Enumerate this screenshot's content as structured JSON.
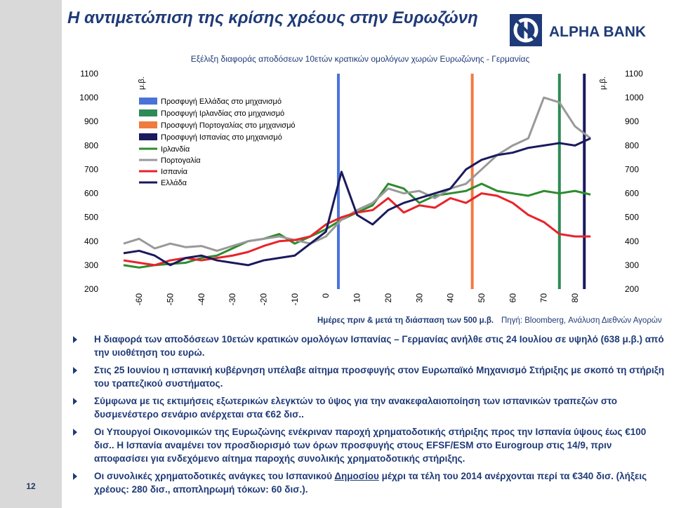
{
  "page_number": "12",
  "title": "Η αντιμετώπιση της κρίσης χρέους στην Ευρωζώνη",
  "logo": {
    "text": "ALPHA BANK",
    "color": "#1f3a78"
  },
  "chart_data": {
    "type": "line",
    "title": "Εξέλιξη διαφοράς αποδόσεων 10ετών κρατικών ομολόγων χωρών Ευρωζώνης - Γερμανίας",
    "ylabel_left": "μ.β.",
    "ylabel_right": "μ.β.",
    "xlabel": "Ημέρες πριν & μετά τη διάσπαση των 500 μ.β.",
    "source": "Πηγή: Bloomberg, Ανάλυση Διεθνών Αγορών",
    "ylim": [
      200,
      1100
    ],
    "yticks": [
      "1100",
      "1000",
      "900",
      "800",
      "700",
      "600",
      "500",
      "400",
      "300",
      "200"
    ],
    "xlim": [
      -65,
      87
    ],
    "xticks": [
      "-60",
      "-50",
      "-40",
      "-30",
      "-20",
      "-10",
      "0",
      "10",
      "20",
      "30",
      "40",
      "50",
      "60",
      "70",
      "80"
    ],
    "vlines": [
      {
        "name": "Προσφυγή Ελλάδας στο μηχανισμό",
        "x": 4,
        "color": "#4a72d9"
      },
      {
        "name": "Προσφυγή Ιρλανδίας στο μηχανισμό",
        "x": 75,
        "color": "#2e8b57"
      },
      {
        "name": "Προσφυγή Πορτογαλίας στο μηχανισμό",
        "x": 47,
        "color": "#f07b3f"
      },
      {
        "name": "Προσφυγή Ισπανίας στο μηχανισμό",
        "x": 83,
        "color": "#1a1a5e"
      }
    ],
    "series": [
      {
        "name": "Ιρλανδία",
        "color": "#2e8b2e",
        "x": [
          -65,
          -60,
          -55,
          -50,
          -45,
          -40,
          -35,
          -30,
          -25,
          -20,
          -15,
          -10,
          -5,
          0,
          5,
          10,
          15,
          20,
          25,
          30,
          35,
          40,
          45,
          50,
          55,
          60,
          65,
          70,
          75,
          80,
          85
        ],
        "values": [
          300,
          290,
          300,
          305,
          310,
          330,
          340,
          370,
          400,
          410,
          430,
          390,
          420,
          450,
          490,
          520,
          550,
          640,
          620,
          560,
          590,
          600,
          610,
          640,
          610,
          600,
          590,
          610,
          600,
          610,
          595
        ]
      },
      {
        "name": "Πορτογαλία",
        "color": "#999999",
        "x": [
          -65,
          -60,
          -55,
          -50,
          -45,
          -40,
          -35,
          -30,
          -25,
          -20,
          -15,
          -10,
          -5,
          0,
          5,
          10,
          15,
          20,
          25,
          30,
          35,
          40,
          45,
          50,
          55,
          60,
          65,
          70,
          75,
          80,
          85
        ],
        "values": [
          390,
          410,
          370,
          390,
          375,
          380,
          360,
          380,
          400,
          410,
          420,
          405,
          390,
          420,
          490,
          530,
          560,
          620,
          600,
          610,
          580,
          620,
          640,
          700,
          760,
          800,
          830,
          1000,
          980,
          880,
          830
        ]
      },
      {
        "name": "Ισπανία",
        "color": "#e8232a",
        "x": [
          -65,
          -60,
          -55,
          -50,
          -45,
          -40,
          -35,
          -30,
          -25,
          -20,
          -15,
          -10,
          -5,
          0,
          5,
          10,
          15,
          20,
          25,
          30,
          35,
          40,
          45,
          50,
          55,
          60,
          65,
          70,
          75,
          80,
          85
        ],
        "values": [
          320,
          310,
          300,
          320,
          330,
          320,
          330,
          340,
          355,
          380,
          400,
          405,
          420,
          470,
          500,
          520,
          530,
          580,
          520,
          550,
          540,
          580,
          560,
          600,
          590,
          560,
          510,
          480,
          430,
          420,
          420
        ]
      },
      {
        "name": "Ελλάδα",
        "color": "#1a1a5e",
        "x": [
          -65,
          -60,
          -55,
          -50,
          -45,
          -40,
          -35,
          -30,
          -25,
          -20,
          -15,
          -10,
          -5,
          0,
          5,
          10,
          15,
          20,
          25,
          30,
          35,
          40,
          45,
          50,
          55,
          60,
          65,
          70,
          75,
          80,
          85
        ],
        "values": [
          350,
          360,
          340,
          300,
          330,
          340,
          320,
          310,
          300,
          320,
          330,
          340,
          390,
          440,
          690,
          510,
          470,
          530,
          560,
          580,
          600,
          620,
          700,
          740,
          760,
          770,
          790,
          800,
          810,
          800,
          830
        ]
      }
    ]
  },
  "bullets": [
    {
      "pre": "Η διαφορά των αποδόσεων 10ετών κρατικών ομολόγων Ισπανίας – Γερμανίας ανήλθε στις 24 Ιουλίου σε υψηλό (638 μ.β.) από την υιοθέτηση του ευρώ.",
      "u": "",
      "post": ""
    },
    {
      "pre": "Στις 25 Ιουνίου η ισπανική κυβέρνηση υπέλαβε αίτημα προσφυγής στον Ευρωπαϊκό Μηχανισμό Στήριξης με σκοπό τη στήριξη του τραπεζικού συστήματος.",
      "u": "",
      "post": ""
    },
    {
      "pre": "Σύμφωνα με τις εκτιμήσεις εξωτερικών ελεγκτών το ύψος για την ανακεφαλαιοποίηση των ισπανικών τραπεζών στο δυσμενέστερο σενάριο ανέρχεται στα €62 δισ..",
      "u": "",
      "post": ""
    },
    {
      "pre": "Οι Υπουργοί Οικονομικών της Ευρωζώνης ενέκριναν παροχή χρηματοδοτικής στήριξης προς την Ισπανία ύψους έως €100 δισ.. Η Ισπανία αναμένει τον προσδιορισμό των όρων προσφυγής στους EFSF/ESM στο Eurogroup στις 14/9, πριν αποφασίσει για ενδεχόμενο αίτημα παροχής συνολικής χρηματοδοτικής στήριξης.",
      "u": "",
      "post": ""
    },
    {
      "pre": "Οι συνολικές χρηματοδοτικές ανάγκες του Ισπανικού ",
      "u": "Δημοσίου",
      "post": " μέχρι τα τέλη του 2014 ανέρχονται περί τα €340 δισ. (λήξεις χρέους: 280 δισ., αποπληρωμή τόκων: 60 δισ.)."
    }
  ]
}
